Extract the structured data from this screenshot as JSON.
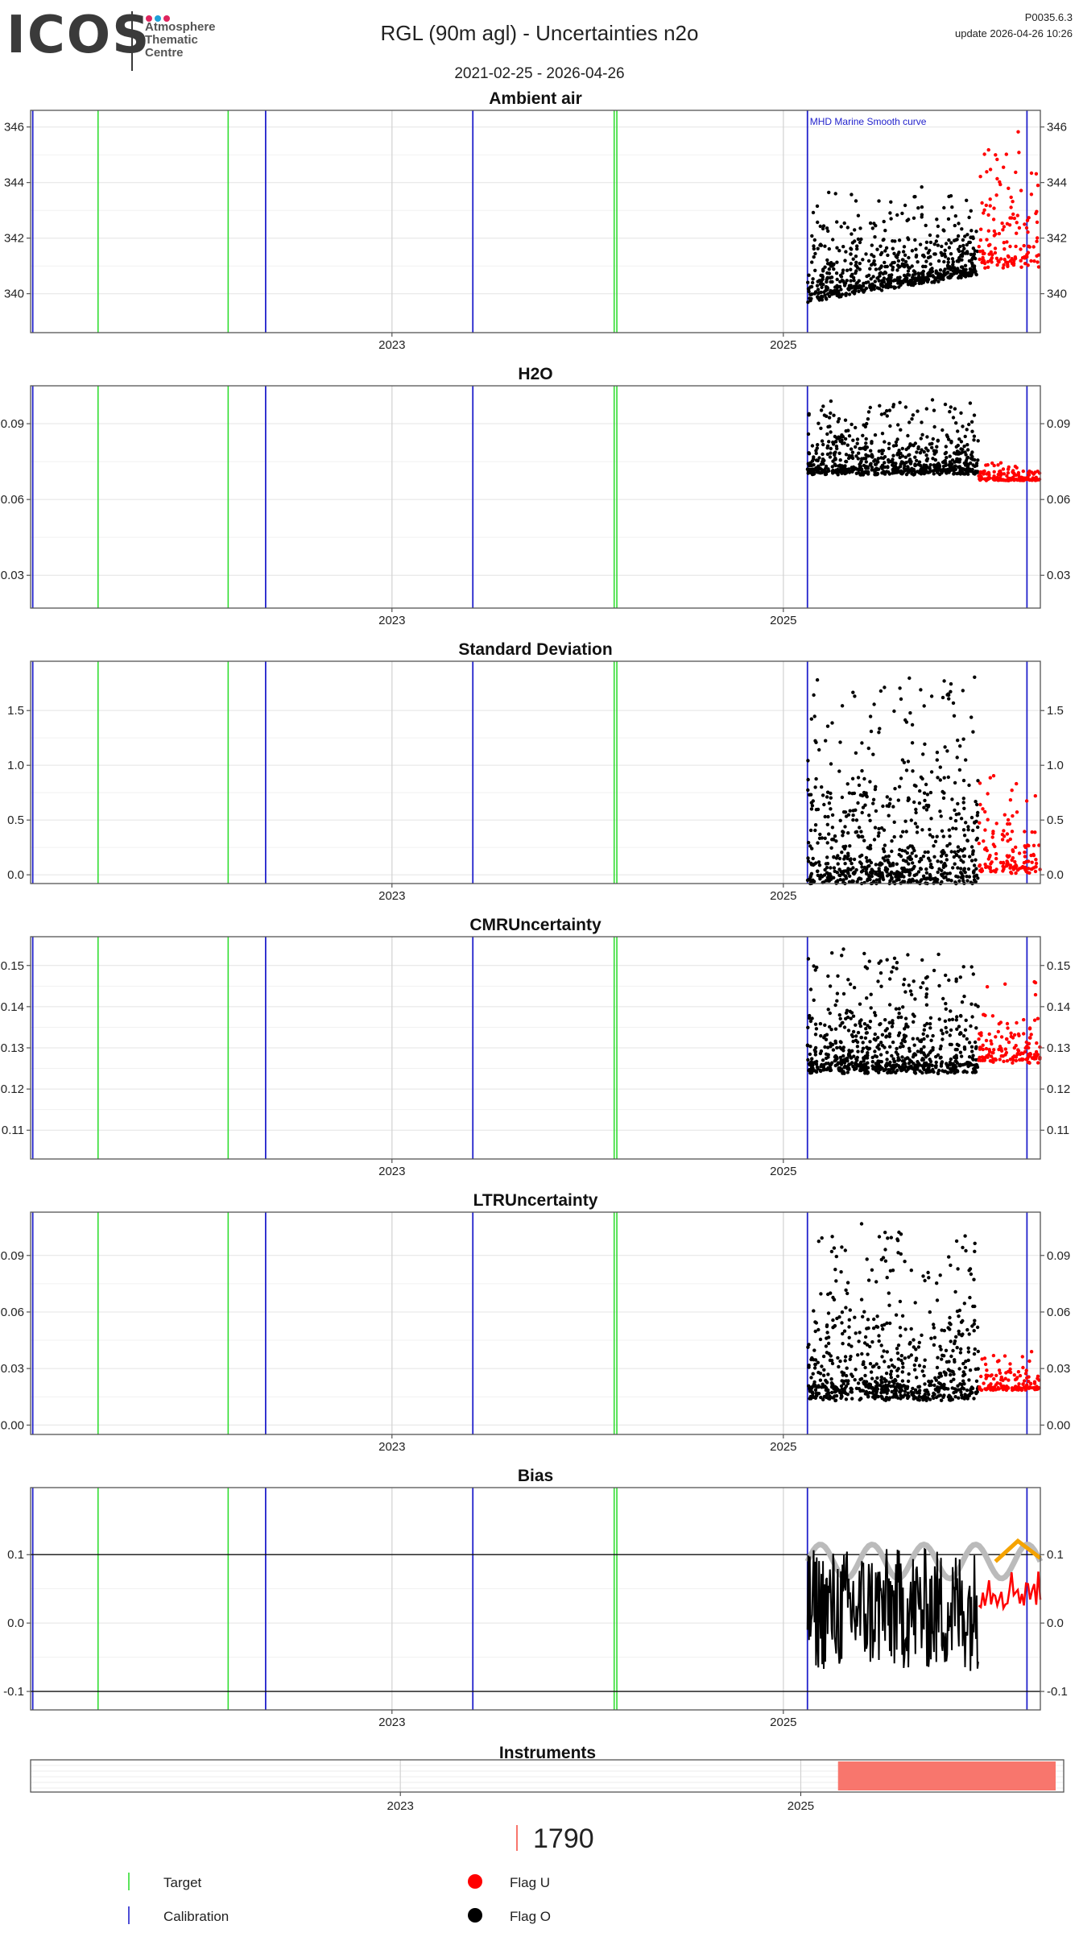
{
  "header": {
    "logo_text": "ICOS",
    "logo_sub": "Atmosphere\nThematic\nCentre",
    "logo_dot_colors": [
      "#e0245e",
      "#1fa0d8",
      "#e0245e"
    ],
    "title": "RGL  (90m agl) - Uncertainties n2o",
    "date_range": "2021-02-25 - 2026-04-26",
    "version": "P0035.6.3",
    "update": "update  2026-04-26 10:26"
  },
  "colors": {
    "target": "#33dd33",
    "calibration": "#2222cc",
    "flag_u": "#ff0000",
    "flag_o": "#000000",
    "instrument": "#f8766d",
    "smooth_curve": "#bbbbbb",
    "bias_orange": "#f5a300",
    "bias_dark": "#a0153e"
  },
  "chart_data": [
    {
      "type": "scatter",
      "title": "Ambient air",
      "x_ticks": [
        "2023",
        "2025"
      ],
      "ylim": [
        338.6,
        346.6
      ],
      "y_ticks": [
        340,
        342,
        344,
        346
      ],
      "y_tick_labels": [
        "340",
        "342",
        "344",
        "346"
      ],
      "annotation": "MHD Marine Smooth curve",
      "series_flag_o": {
        "x_range": [
          "2025-02-15",
          "2025-12-31"
        ],
        "y_base_start": 340.0,
        "y_base_end": 340.9,
        "y_peak": 343.9
      },
      "series_flag_u": {
        "x_range": [
          "2026-01-01",
          "2026-04-26"
        ],
        "y_base": 341.3,
        "y_peak": 346.1
      }
    },
    {
      "type": "scatter",
      "title": "H2O",
      "x_ticks": [
        "2023",
        "2025"
      ],
      "ylim": [
        0.017,
        0.105
      ],
      "y_ticks": [
        0.03,
        0.06,
        0.09
      ],
      "y_tick_labels": [
        "0.03",
        "0.06",
        "0.09"
      ],
      "series_flag_o": {
        "x_range": [
          "2025-02-15",
          "2025-12-31"
        ],
        "y_base": 0.072,
        "y_peak": 0.1
      },
      "series_flag_u": {
        "x_range": [
          "2026-01-01",
          "2026-04-26"
        ],
        "y_base": 0.068,
        "y_peak": 0.075
      }
    },
    {
      "type": "scatter",
      "title": "Standard Deviation",
      "x_ticks": [
        "2023",
        "2025"
      ],
      "ylim": [
        -0.08,
        1.95
      ],
      "y_ticks": [
        0.0,
        0.5,
        1.0,
        1.5
      ],
      "y_tick_labels": [
        "0.0",
        "0.5",
        "1.0",
        "1.5"
      ],
      "series_flag_o": {
        "x_range": [
          "2025-02-15",
          "2025-12-31"
        ],
        "y_base": 0.05,
        "y_peak": 1.9
      },
      "series_flag_u": {
        "x_range": [
          "2026-01-01",
          "2026-04-26"
        ],
        "y_base": 0.08,
        "y_peak": 1.03
      }
    },
    {
      "type": "scatter",
      "title": "CMRUncertainty",
      "x_ticks": [
        "2023",
        "2025"
      ],
      "ylim": [
        0.103,
        0.157
      ],
      "y_ticks": [
        0.11,
        0.12,
        0.13,
        0.14,
        0.15
      ],
      "y_tick_labels": [
        "0.11",
        "0.12",
        "0.13",
        "0.14",
        "0.15"
      ],
      "series_flag_o": {
        "x_range": [
          "2025-02-15",
          "2025-12-31"
        ],
        "y_base": 0.126,
        "y_peak": 0.155
      },
      "series_flag_u": {
        "x_range": [
          "2026-01-01",
          "2026-04-26"
        ],
        "y_base": 0.128,
        "y_peak": 0.15
      }
    },
    {
      "type": "scatter",
      "title": "LTRUncertainty",
      "x_ticks": [
        "2023",
        "2025"
      ],
      "ylim": [
        -0.005,
        0.113
      ],
      "y_ticks": [
        0.0,
        0.03,
        0.06,
        0.09
      ],
      "y_tick_labels": [
        "0.00",
        "0.03",
        "0.06",
        "0.09"
      ],
      "series_flag_o": {
        "x_range": [
          "2025-02-15",
          "2025-12-31"
        ],
        "y_base": 0.02,
        "y_peak": 0.108
      },
      "series_flag_u": {
        "x_range": [
          "2026-01-01",
          "2026-04-26"
        ],
        "y_base": 0.02,
        "y_peak": 0.04
      }
    },
    {
      "type": "line",
      "title": "Bias",
      "x_ticks": [
        "2023",
        "2025"
      ],
      "ylim": [
        -0.127,
        0.198
      ],
      "y_ticks": [
        -0.1,
        0.0,
        0.1
      ],
      "y_tick_labels": [
        "-0.1",
        "0.0",
        "0.1"
      ],
      "hlines": [
        0.1,
        -0.1
      ],
      "series_flag_o": {
        "x_range": [
          "2025-02-15",
          "2025-12-31"
        ],
        "y_base": 0.02,
        "y_peak": 0.18
      },
      "series_flag_u": {
        "x_range": [
          "2026-01-01",
          "2026-04-26"
        ],
        "y_base": 0.05,
        "y_peak": 0.09
      },
      "smooth_curve": {
        "x_range": [
          "2025-02-15",
          "2026-04-26"
        ],
        "y_base": 0.09,
        "amplitude": 0.025
      }
    }
  ],
  "date_axis": {
    "start": "2021-02-25",
    "end": "2026-04-26"
  },
  "events": {
    "calibration": [
      "2021-03-01",
      "2022-05-10",
      "2023-06-01",
      "2025-02-15",
      "2026-04-01"
    ],
    "target": [
      "2021-07-01",
      "2022-03-01",
      "2024-02-20",
      "2024-02-25"
    ]
  },
  "instruments": {
    "title": "Instruments",
    "x_ticks": [
      "2023",
      "2025"
    ],
    "bar_range": [
      "2025-03-10",
      "2026-04-26"
    ],
    "bar_label": "1790"
  },
  "legend": {
    "target": "Target",
    "calibration": "Calibration",
    "flag_u": "Flag U",
    "flag_o": "Flag O"
  }
}
